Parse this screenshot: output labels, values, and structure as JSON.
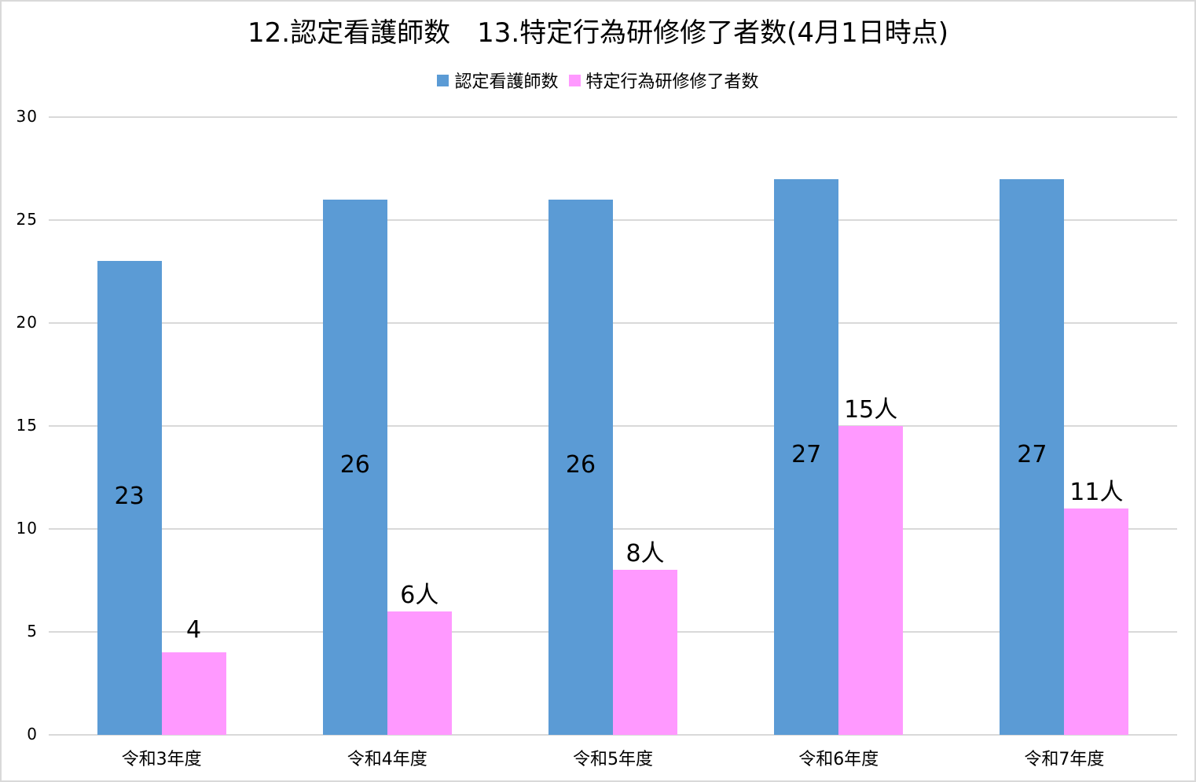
{
  "chart_data": {
    "type": "bar",
    "title": "12.認定看護師数　13.特定行為研修修了者数(4月1日時点)",
    "categories": [
      "令和3年度",
      "令和4年度",
      "令和5年度",
      "令和6年度",
      "令和7年度"
    ],
    "series": [
      {
        "name": "認定看護師数",
        "color": "#5b9bd5",
        "values": [
          23,
          26,
          26,
          27,
          27
        ],
        "labels": [
          "23",
          "26",
          "26",
          "27",
          "27"
        ],
        "label_position": "center"
      },
      {
        "name": "特定行為研修修了者数",
        "color": "#ff99ff",
        "values": [
          4,
          6,
          8,
          15,
          11
        ],
        "labels": [
          "4",
          "6人",
          "8人",
          "15人",
          "11人"
        ],
        "label_position": "outside_end"
      }
    ],
    "xlabel": "",
    "ylabel": "",
    "ylim": [
      0,
      30
    ],
    "yticks": [
      "0",
      "5",
      "10",
      "15",
      "20",
      "25",
      "30"
    ],
    "grid": true,
    "legend_position": "top"
  },
  "chart": {
    "title": "12.認定看護師数　13.特定行為研修修了者数(4月1日時点)",
    "legend": [
      {
        "label": "認定看護師数",
        "color": "#5b9bd5"
      },
      {
        "label": "特定行為研修修了者数",
        "color": "#ff99ff"
      }
    ],
    "gridline_color": "#d9d9d9",
    "border_color": "#d9d9d9"
  }
}
